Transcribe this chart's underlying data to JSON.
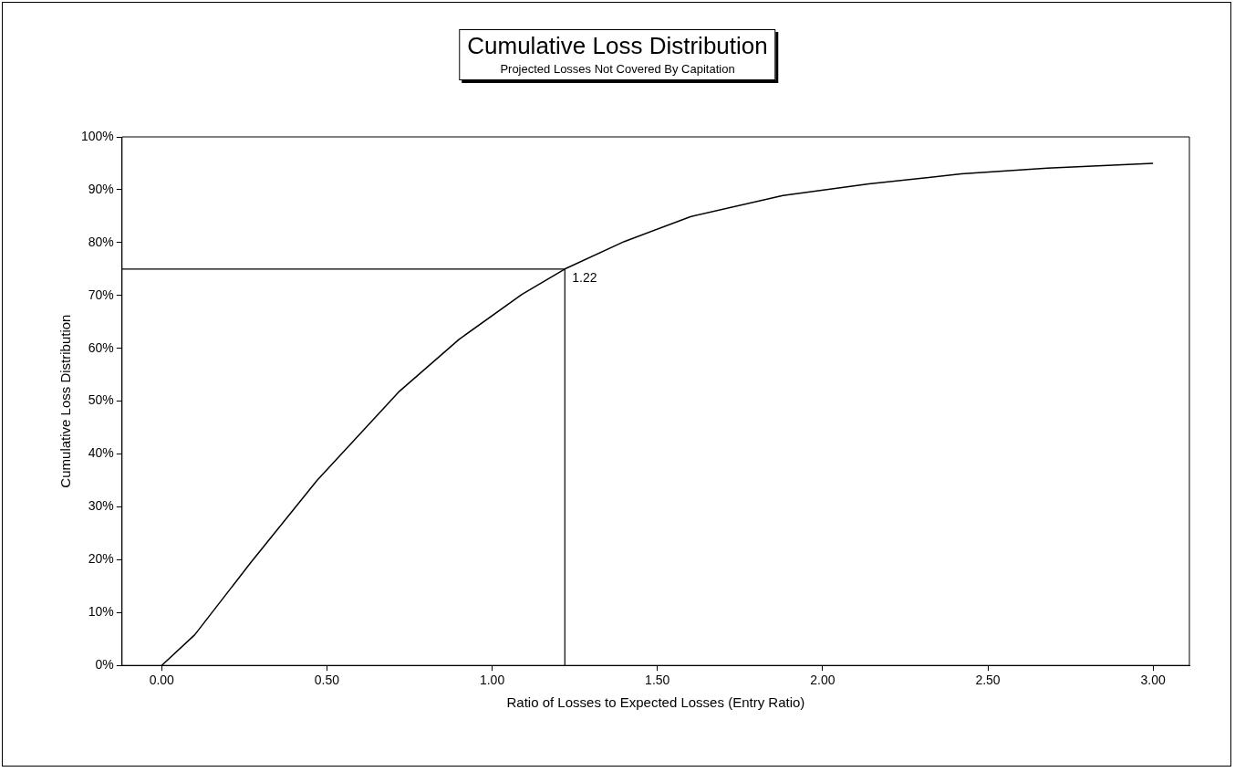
{
  "chart_data": {
    "type": "line",
    "title": "Cumulative Loss Distribution",
    "subtitle": "Projected Losses Not Covered By Capitation",
    "xlabel": "Ratio of Losses to Expected Losses (Entry Ratio)",
    "ylabel": "Cumulative Loss Distribution",
    "x": [
      0,
      0.1,
      0.27,
      0.47,
      0.72,
      0.9,
      1.09,
      1.22,
      1.4,
      1.6,
      1.88,
      2.14,
      2.42,
      2.68,
      3.0
    ],
    "series": [
      {
        "color": "#000000",
        "values": [
          0,
          5.8,
          19.5,
          35.0,
          51.9,
          61.7,
          70.2,
          75,
          80.2,
          84.9,
          88.9,
          91.1,
          93.0,
          94.1,
          95.0
        ]
      }
    ],
    "xlim": [
      -0.12,
      3.11
    ],
    "xticks": [
      {
        "value": 0,
        "label": "0.00"
      },
      {
        "value": 0.5,
        "label": "0.50"
      },
      {
        "value": 1,
        "label": "1.00"
      },
      {
        "value": 1.5,
        "label": "1.50"
      },
      {
        "value": 2,
        "label": "2.00"
      },
      {
        "value": 2.5,
        "label": "2.50"
      },
      {
        "value": 3,
        "label": "3.00"
      }
    ],
    "ylim": [
      0,
      100
    ],
    "yticks": [
      {
        "value": 0,
        "label": "0%"
      },
      {
        "value": 10,
        "label": "10%"
      },
      {
        "value": 20,
        "label": "20%"
      },
      {
        "value": 30,
        "label": "30%"
      },
      {
        "value": 40,
        "label": "40%"
      },
      {
        "value": 50,
        "label": "50%"
      },
      {
        "value": 60,
        "label": "60%"
      },
      {
        "value": 70,
        "label": "70%"
      },
      {
        "value": 80,
        "label": "80%"
      },
      {
        "value": 90,
        "label": "90%"
      },
      {
        "value": 100,
        "label": "100%"
      }
    ],
    "ref_lines": [
      {
        "axis": "y",
        "value": 75,
        "color": "#000000"
      },
      {
        "axis": "x",
        "value": 1.22,
        "color": "#000000"
      }
    ],
    "annotations": [
      {
        "text": "1.22",
        "x": 1.22,
        "y": 75
      }
    ],
    "grid": false,
    "legend": false,
    "marker": "none",
    "line_style": "solid"
  }
}
